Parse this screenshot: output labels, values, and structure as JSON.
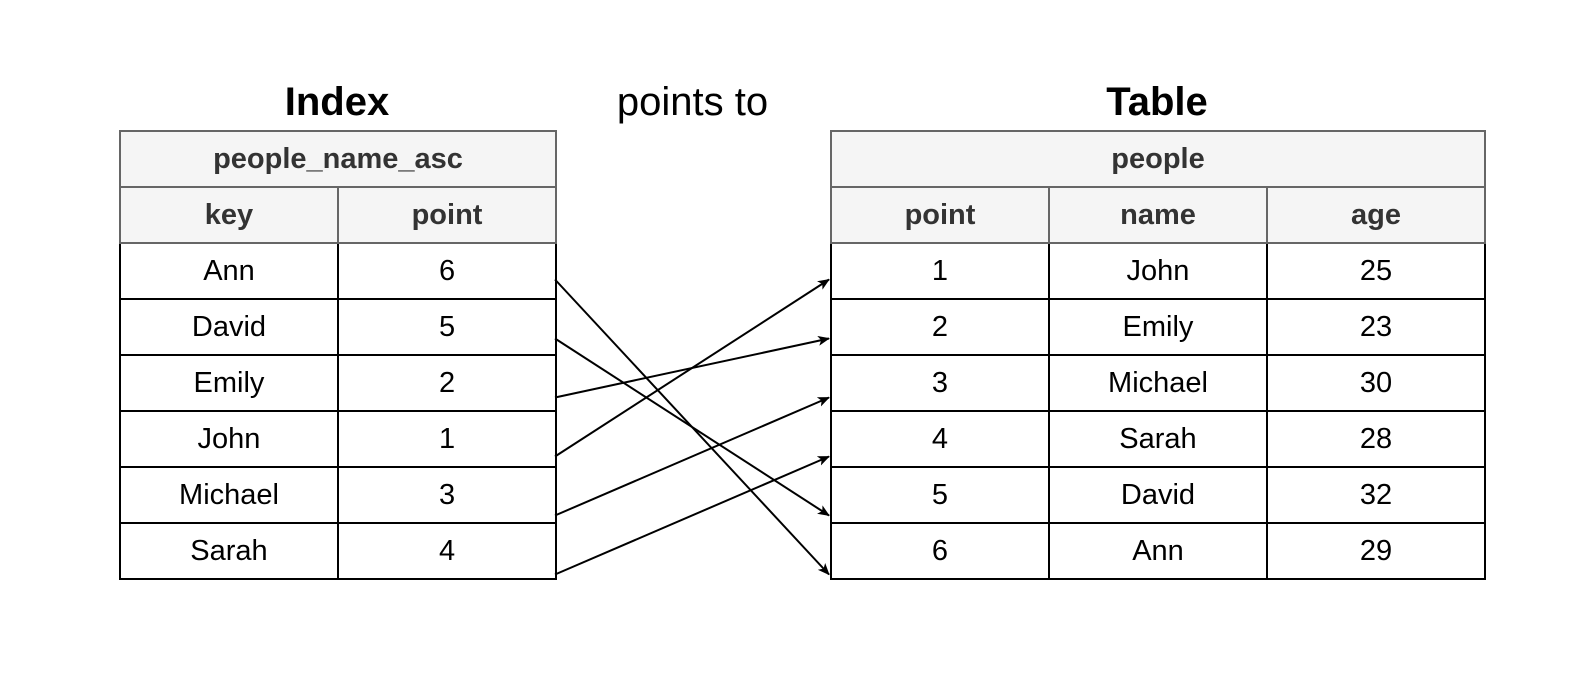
{
  "headings": {
    "index": "Index",
    "connector": "points to",
    "table": "Table"
  },
  "index_table": {
    "name": "people_name_asc",
    "columns": [
      "key",
      "point"
    ],
    "rows": [
      {
        "key": "Ann",
        "point": "6"
      },
      {
        "key": "David",
        "point": "5"
      },
      {
        "key": "Emily",
        "point": "2"
      },
      {
        "key": "John",
        "point": "1"
      },
      {
        "key": "Michael",
        "point": "3"
      },
      {
        "key": "Sarah",
        "point": "4"
      }
    ]
  },
  "people_table": {
    "name": "people",
    "columns": [
      "point",
      "name",
      "age"
    ],
    "rows": [
      {
        "point": "1",
        "name": "John",
        "age": "25"
      },
      {
        "point": "2",
        "name": "Emily",
        "age": "23"
      },
      {
        "point": "3",
        "name": "Michael",
        "age": "30"
      },
      {
        "point": "4",
        "name": "Sarah",
        "age": "28"
      },
      {
        "point": "5",
        "name": "David",
        "age": "32"
      },
      {
        "point": "6",
        "name": "Ann",
        "age": "29"
      }
    ]
  },
  "colors": {
    "header_fill": "#f5f5f5",
    "header_text": "#333333",
    "header_border": "#666666",
    "border": "#000000",
    "arrow": "#000000"
  }
}
